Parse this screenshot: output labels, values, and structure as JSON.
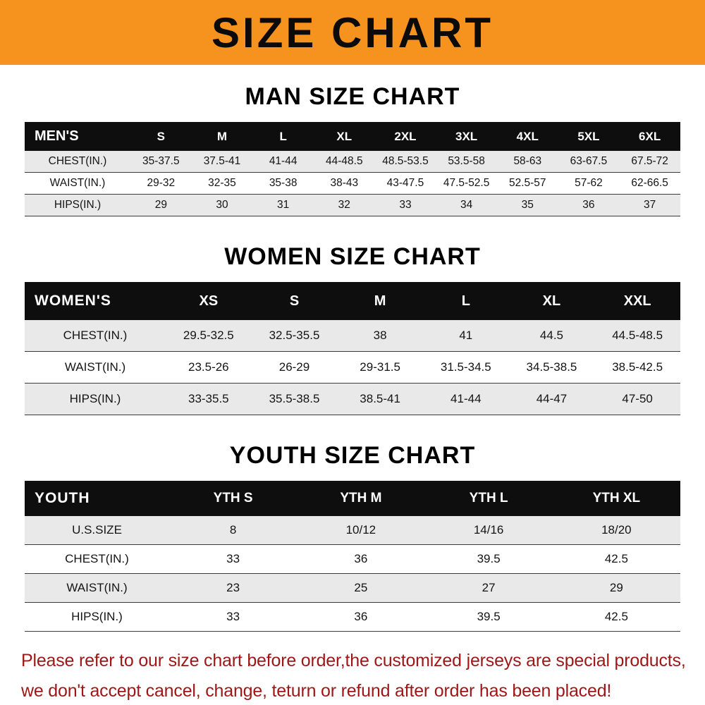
{
  "banner": {
    "title": "SIZE CHART",
    "background_color": "#F6921E"
  },
  "chart_data": [
    {
      "type": "table",
      "title": "MAN SIZE CHART",
      "corner_label": "MEN'S",
      "columns": [
        "S",
        "M",
        "L",
        "XL",
        "2XL",
        "3XL",
        "4XL",
        "5XL",
        "6XL"
      ],
      "rows": [
        {
          "label": "CHEST(IN.)",
          "values": [
            "35-37.5",
            "37.5-41",
            "41-44",
            "44-48.5",
            "48.5-53.5",
            "53.5-58",
            "58-63",
            "63-67.5",
            "67.5-72"
          ]
        },
        {
          "label": "WAIST(IN.)",
          "values": [
            "29-32",
            "32-35",
            "35-38",
            "38-43",
            "43-47.5",
            "47.5-52.5",
            "52.5-57",
            "57-62",
            "62-66.5"
          ]
        },
        {
          "label": "HIPS(IN.)",
          "values": [
            "29",
            "30",
            "31",
            "32",
            "33",
            "34",
            "35",
            "36",
            "37"
          ]
        }
      ]
    },
    {
      "type": "table",
      "title": "WOMEN SIZE CHART",
      "corner_label": "WOMEN'S",
      "columns": [
        "XS",
        "S",
        "M",
        "L",
        "XL",
        "XXL"
      ],
      "rows": [
        {
          "label": "CHEST(IN.)",
          "values": [
            "29.5-32.5",
            "32.5-35.5",
            "38",
            "41",
            "44.5",
            "44.5-48.5"
          ]
        },
        {
          "label": "WAIST(IN.)",
          "values": [
            "23.5-26",
            "26-29",
            "29-31.5",
            "31.5-34.5",
            "34.5-38.5",
            "38.5-42.5"
          ]
        },
        {
          "label": "HIPS(IN.)",
          "values": [
            "33-35.5",
            "35.5-38.5",
            "38.5-41",
            "41-44",
            "44-47",
            "47-50"
          ]
        }
      ]
    },
    {
      "type": "table",
      "title": "YOUTH SIZE CHART",
      "corner_label": "YOUTH",
      "columns": [
        "YTH S",
        "YTH M",
        "YTH L",
        "YTH XL"
      ],
      "rows": [
        {
          "label": "U.S.SIZE",
          "values": [
            "8",
            "10/12",
            "14/16",
            "18/20"
          ]
        },
        {
          "label": "CHEST(IN.)",
          "values": [
            "33",
            "36",
            "39.5",
            "42.5"
          ]
        },
        {
          "label": "WAIST(IN.)",
          "values": [
            "23",
            "25",
            "27",
            "29"
          ]
        },
        {
          "label": "HIPS(IN.)",
          "values": [
            "33",
            "36",
            "39.5",
            "42.5"
          ]
        }
      ]
    }
  ],
  "footer": {
    "line1": "Please refer to our size chart before order,the customized jerseys are special products,",
    "line2": "we don't accept cancel, change, teturn or refund after order has been placed!",
    "text_color": "#9E1717"
  }
}
